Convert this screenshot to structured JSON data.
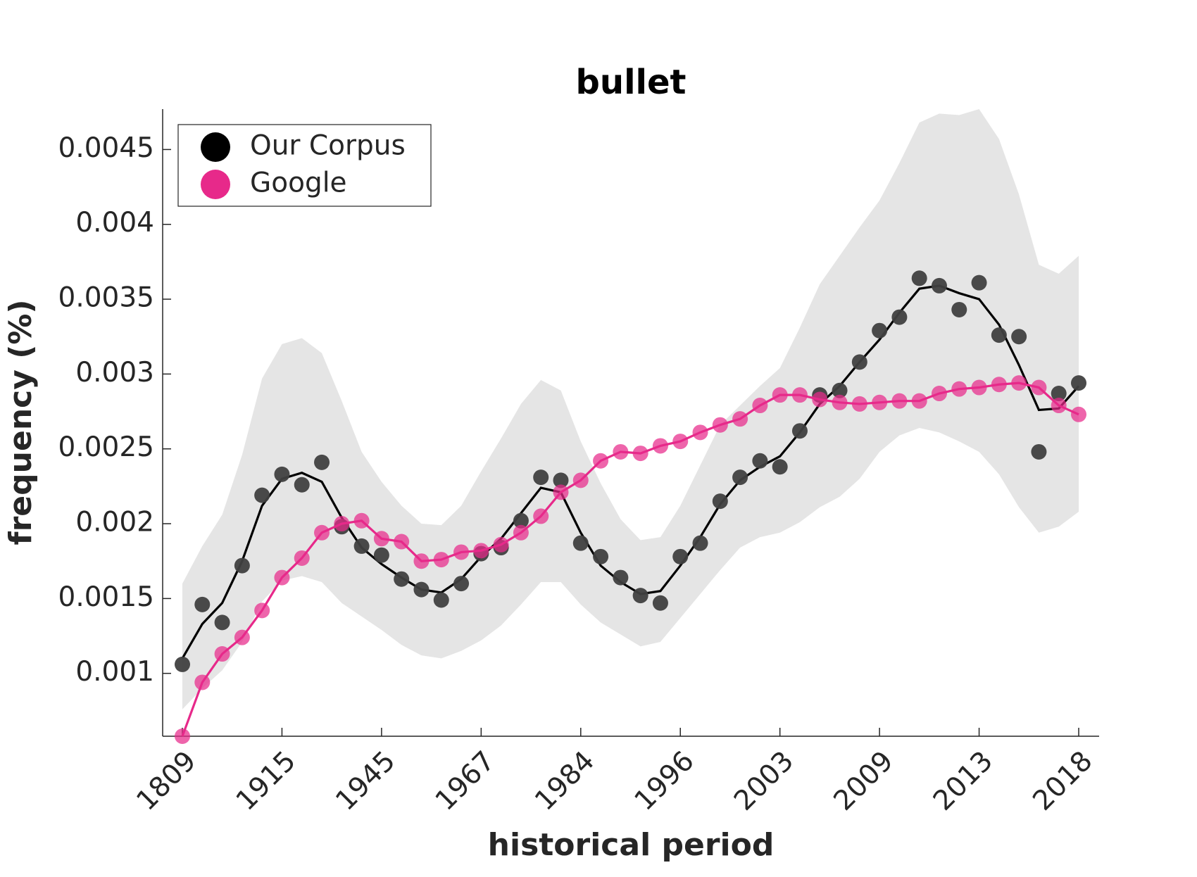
{
  "chart_data": {
    "type": "line-scatter",
    "title": "bullet",
    "x_label": "historical period",
    "y_label": "frequency (%)",
    "categories": [
      "1809",
      null,
      null,
      null,
      null,
      "1915",
      null,
      null,
      null,
      null,
      "1945",
      null,
      null,
      null,
      null,
      "1967",
      null,
      null,
      null,
      null,
      "1984",
      null,
      null,
      null,
      null,
      "1996",
      null,
      null,
      null,
      null,
      "2003",
      null,
      null,
      null,
      null,
      "2009",
      null,
      null,
      null,
      null,
      "2013",
      null,
      null,
      null,
      null,
      "2018"
    ],
    "ylim": [
      0.00058,
      0.00477
    ],
    "yticks": [
      0.001,
      0.0015,
      0.002,
      0.0025,
      0.003,
      0.0035,
      0.004,
      0.0045
    ],
    "legend": "upper left",
    "series": [
      {
        "name": "Our Corpus",
        "color": "#000000",
        "marker_color": "#404040",
        "band_color": "#e5e5e5",
        "values": [
          0.00106,
          0.00146,
          0.00134,
          0.00172,
          0.00219,
          0.00233,
          0.00226,
          0.00241,
          0.00198,
          0.00185,
          0.00179,
          0.00163,
          0.00156,
          0.00149,
          0.0016,
          0.0018,
          0.00184,
          0.00202,
          0.00231,
          0.00229,
          0.00187,
          0.00178,
          0.00164,
          0.00152,
          0.00147,
          0.00178,
          0.00187,
          0.00215,
          0.00231,
          0.00242,
          0.00238,
          0.00262,
          0.00286,
          0.00289,
          0.00308,
          0.00329,
          0.00338,
          0.00364,
          0.00359,
          0.00343,
          0.00361,
          0.00326,
          0.00325,
          0.00248,
          0.00287,
          0.00294
        ],
        "smooth": [
          0.0011,
          0.00133,
          0.00147,
          0.00175,
          0.00212,
          0.0023,
          0.00234,
          0.00228,
          0.00204,
          0.00184,
          0.00173,
          0.00164,
          0.00156,
          0.00154,
          0.00163,
          0.00178,
          0.0019,
          0.00207,
          0.00224,
          0.00221,
          0.00194,
          0.00172,
          0.00161,
          0.00153,
          0.00155,
          0.00172,
          0.00191,
          0.00213,
          0.00229,
          0.00238,
          0.00245,
          0.00261,
          0.0028,
          0.00292,
          0.00308,
          0.00323,
          0.00341,
          0.00357,
          0.00359,
          0.00354,
          0.0035,
          0.00333,
          0.00306,
          0.00276,
          0.00277,
          0.00292
        ],
        "band_upper": [
          0.0016,
          0.00185,
          0.00206,
          0.00246,
          0.00297,
          0.0032,
          0.00324,
          0.00314,
          0.00282,
          0.00248,
          0.00228,
          0.00212,
          0.002,
          0.00199,
          0.00212,
          0.00235,
          0.00257,
          0.0028,
          0.00296,
          0.00289,
          0.00255,
          0.00227,
          0.00203,
          0.00189,
          0.00191,
          0.00212,
          0.00239,
          0.00266,
          0.00279,
          0.00292,
          0.00304,
          0.00331,
          0.0036,
          0.00379,
          0.00398,
          0.00416,
          0.00441,
          0.00468,
          0.00474,
          0.00473,
          0.00477,
          0.00457,
          0.0042,
          0.00373,
          0.00367,
          0.00379
        ],
        "band_lower": [
          0.00076,
          0.0009,
          0.00102,
          0.00121,
          0.00148,
          0.00162,
          0.00165,
          0.00161,
          0.00147,
          0.00138,
          0.00129,
          0.00119,
          0.00112,
          0.0011,
          0.00115,
          0.00122,
          0.00132,
          0.00146,
          0.00161,
          0.00161,
          0.00146,
          0.00134,
          0.00126,
          0.00118,
          0.00121,
          0.00137,
          0.00153,
          0.00169,
          0.00184,
          0.00191,
          0.00194,
          0.00201,
          0.00211,
          0.00218,
          0.0023,
          0.00248,
          0.00259,
          0.00264,
          0.00261,
          0.00255,
          0.00248,
          0.00233,
          0.00211,
          0.00194,
          0.00198,
          0.00208
        ]
      },
      {
        "name": "Google",
        "color": "#e7298a",
        "marker_color": "#e7298a",
        "values": [
          0.00058,
          0.00094,
          0.00113,
          0.00124,
          0.00142,
          0.00164,
          0.00177,
          0.00194,
          0.002,
          0.00202,
          0.0019,
          0.00188,
          0.00175,
          0.00176,
          0.00181,
          0.00182,
          0.00186,
          0.00194,
          0.00205,
          0.00221,
          0.00229,
          0.00242,
          0.00248,
          0.00247,
          0.00252,
          0.00255,
          0.00261,
          0.00266,
          0.0027,
          0.00279,
          0.00286,
          0.00286,
          0.00283,
          0.00281,
          0.0028,
          0.00281,
          0.00282,
          0.00282,
          0.00287,
          0.0029,
          0.00291,
          0.00293,
          0.00294,
          0.00291,
          0.00279,
          0.00273
        ]
      }
    ]
  }
}
